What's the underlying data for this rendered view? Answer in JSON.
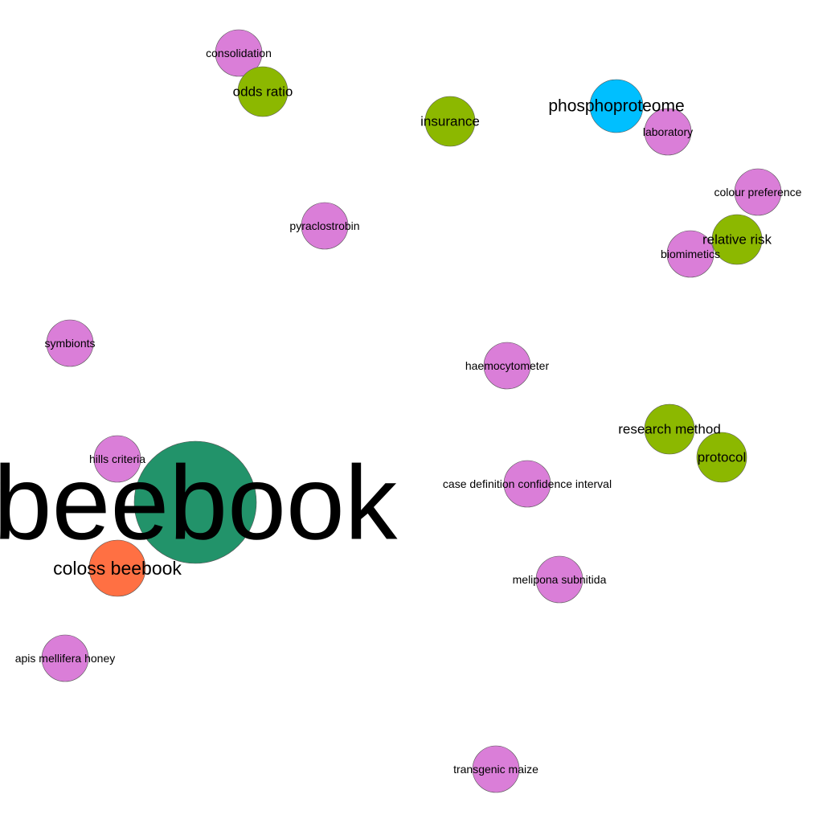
{
  "colors": {
    "default": "#da7ed8",
    "green": "#8cb800",
    "teal": "#22936a",
    "blue": "#00bfff",
    "orange": "#ff7043"
  },
  "nodes": [
    {
      "id": "consolidation",
      "label": "consolidation",
      "color": "#da7ed8",
      "weight": 1
    },
    {
      "id": "odds-ratio",
      "label": "odds ratio",
      "color": "#8cb800",
      "weight": 2
    },
    {
      "id": "insurance",
      "label": "insurance",
      "color": "#8cb800",
      "weight": 2
    },
    {
      "id": "phosphoproteome",
      "label": "phosphoproteome",
      "color": "#00bfff",
      "weight": 3
    },
    {
      "id": "laboratory",
      "label": "laboratory",
      "color": "#da7ed8",
      "weight": 1
    },
    {
      "id": "colour-preference",
      "label": "colour preference",
      "color": "#da7ed8",
      "weight": 1
    },
    {
      "id": "pyraclostrobin",
      "label": "pyraclostrobin",
      "color": "#da7ed8",
      "weight": 1
    },
    {
      "id": "relative-risk",
      "label": "relative risk",
      "color": "#8cb800",
      "weight": 2
    },
    {
      "id": "biomimetics",
      "label": "biomimetics",
      "color": "#da7ed8",
      "weight": 1
    },
    {
      "id": "symbionts",
      "label": "symbionts",
      "color": "#da7ed8",
      "weight": 1
    },
    {
      "id": "haemocytometer",
      "label": "haemocytometer",
      "color": "#da7ed8",
      "weight": 1
    },
    {
      "id": "research-method",
      "label": "research method",
      "color": "#8cb800",
      "weight": 2
    },
    {
      "id": "protocol",
      "label": "protocol",
      "color": "#8cb800",
      "weight": 2
    },
    {
      "id": "hills-criteria",
      "label": "hills criteria",
      "color": "#da7ed8",
      "weight": 1
    },
    {
      "id": "beebook",
      "label": "beebook",
      "color": "#22936a",
      "weight": 10
    },
    {
      "id": "case-definition",
      "label": "case definition confidence interval",
      "color": "#da7ed8",
      "weight": 1
    },
    {
      "id": "coloss-beebook",
      "label": "coloss beebook",
      "color": "#ff7043",
      "weight": 3
    },
    {
      "id": "melipona-subnitida",
      "label": "melipona subnitida",
      "color": "#da7ed8",
      "weight": 1
    },
    {
      "id": "apis-mellifera-honey",
      "label": "apis mellifera honey",
      "color": "#da7ed8",
      "weight": 1
    },
    {
      "id": "transgenic-maize",
      "label": "transgenic maize",
      "color": "#da7ed8",
      "weight": 1
    }
  ]
}
